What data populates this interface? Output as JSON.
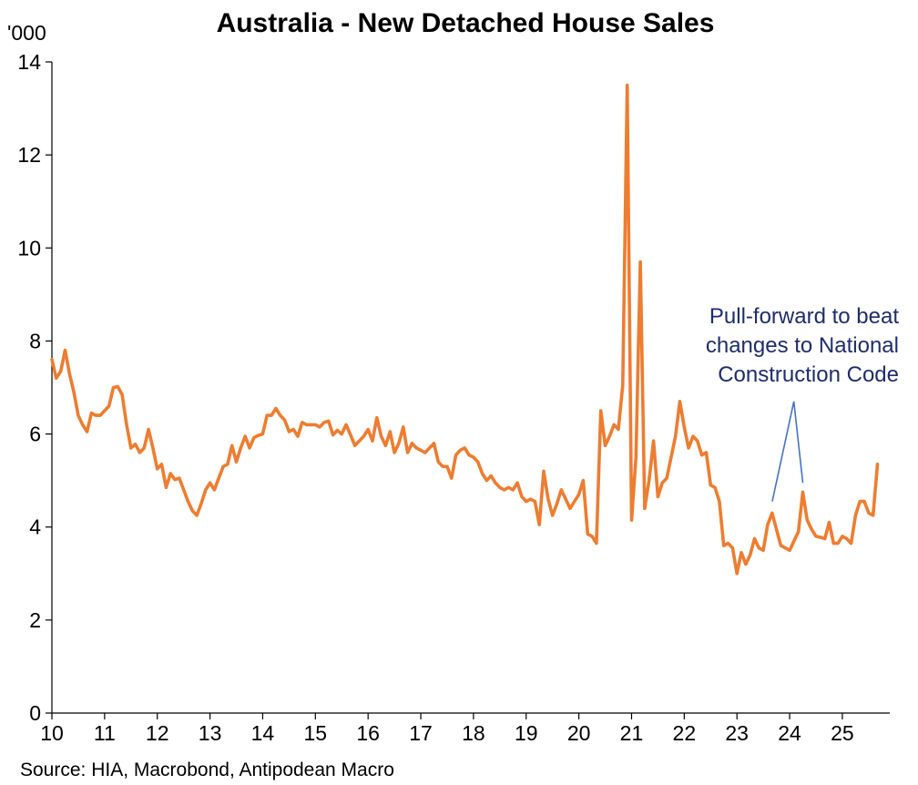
{
  "chart_data": {
    "type": "line",
    "title": "Australia - New Detached House Sales",
    "ylabel": "'000",
    "xlabel": "",
    "ylim": [
      0,
      14
    ],
    "yticks": [
      0,
      2,
      4,
      6,
      8,
      10,
      12,
      14
    ],
    "xlim": [
      2010.0,
      2025.9
    ],
    "xticks": [
      {
        "x": 2010,
        "label": "10"
      },
      {
        "x": 2011,
        "label": "11"
      },
      {
        "x": 2012,
        "label": "12"
      },
      {
        "x": 2013,
        "label": "13"
      },
      {
        "x": 2014,
        "label": "14"
      },
      {
        "x": 2015,
        "label": "15"
      },
      {
        "x": 2016,
        "label": "16"
      },
      {
        "x": 2017,
        "label": "17"
      },
      {
        "x": 2018,
        "label": "18"
      },
      {
        "x": 2019,
        "label": "19"
      },
      {
        "x": 2020,
        "label": "20"
      },
      {
        "x": 2021,
        "label": "21"
      },
      {
        "x": 2022,
        "label": "22"
      },
      {
        "x": 2023,
        "label": "23"
      },
      {
        "x": 2024,
        "label": "24"
      },
      {
        "x": 2025,
        "label": "25"
      }
    ],
    "series": [
      {
        "name": "New Detached House Sales",
        "color": "#ed7d31",
        "x": [
          2010.0,
          2010.083,
          2010.167,
          2010.25,
          2010.333,
          2010.417,
          2010.5,
          2010.583,
          2010.667,
          2010.75,
          2010.833,
          2010.917,
          2011.0,
          2011.083,
          2011.167,
          2011.25,
          2011.333,
          2011.417,
          2011.5,
          2011.583,
          2011.667,
          2011.75,
          2011.833,
          2011.917,
          2012.0,
          2012.083,
          2012.167,
          2012.25,
          2012.333,
          2012.417,
          2012.5,
          2012.583,
          2012.667,
          2012.75,
          2012.833,
          2012.917,
          2013.0,
          2013.083,
          2013.167,
          2013.25,
          2013.333,
          2013.417,
          2013.5,
          2013.583,
          2013.667,
          2013.75,
          2013.833,
          2013.917,
          2014.0,
          2014.083,
          2014.167,
          2014.25,
          2014.333,
          2014.417,
          2014.5,
          2014.583,
          2014.667,
          2014.75,
          2014.833,
          2014.917,
          2015.0,
          2015.083,
          2015.167,
          2015.25,
          2015.333,
          2015.417,
          2015.5,
          2015.583,
          2015.667,
          2015.75,
          2015.833,
          2015.917,
          2016.0,
          2016.083,
          2016.167,
          2016.25,
          2016.333,
          2016.417,
          2016.5,
          2016.583,
          2016.667,
          2016.75,
          2016.833,
          2016.917,
          2017.0,
          2017.083,
          2017.167,
          2017.25,
          2017.333,
          2017.417,
          2017.5,
          2017.583,
          2017.667,
          2017.75,
          2017.833,
          2017.917,
          2018.0,
          2018.083,
          2018.167,
          2018.25,
          2018.333,
          2018.417,
          2018.5,
          2018.583,
          2018.667,
          2018.75,
          2018.833,
          2018.917,
          2019.0,
          2019.083,
          2019.167,
          2019.25,
          2019.333,
          2019.417,
          2019.5,
          2019.583,
          2019.667,
          2019.75,
          2019.833,
          2019.917,
          2020.0,
          2020.083,
          2020.167,
          2020.25,
          2020.333,
          2020.417,
          2020.5,
          2020.583,
          2020.667,
          2020.75,
          2020.833,
          2020.917,
          2021.0,
          2021.083,
          2021.167,
          2021.25,
          2021.333,
          2021.417,
          2021.5,
          2021.583,
          2021.667,
          2021.75,
          2021.833,
          2021.917,
          2022.0,
          2022.083,
          2022.167,
          2022.25,
          2022.333,
          2022.417,
          2022.5,
          2022.583,
          2022.667,
          2022.75,
          2022.833,
          2022.917,
          2023.0,
          2023.083,
          2023.167,
          2023.25,
          2023.333,
          2023.417,
          2023.5,
          2023.583,
          2023.667,
          2023.75,
          2023.833,
          2023.917,
          2024.0,
          2024.083,
          2024.167,
          2024.25,
          2024.333,
          2024.417,
          2024.5,
          2024.583,
          2024.667,
          2024.75,
          2024.833,
          2024.917,
          2025.0,
          2025.083,
          2025.167,
          2025.25,
          2025.333,
          2025.417,
          2025.5,
          2025.583,
          2025.667
        ],
        "values": [
          7.6,
          7.2,
          7.35,
          7.8,
          7.3,
          6.9,
          6.4,
          6.2,
          6.05,
          6.45,
          6.4,
          6.4,
          6.5,
          6.6,
          7.0,
          7.02,
          6.85,
          6.2,
          5.7,
          5.78,
          5.6,
          5.7,
          6.1,
          5.7,
          5.25,
          5.35,
          4.85,
          5.15,
          5.02,
          5.05,
          4.8,
          4.55,
          4.35,
          4.25,
          4.5,
          4.8,
          4.95,
          4.8,
          5.05,
          5.3,
          5.35,
          5.75,
          5.4,
          5.7,
          5.95,
          5.7,
          5.92,
          5.97,
          6.0,
          6.4,
          6.4,
          6.55,
          6.4,
          6.3,
          6.05,
          6.1,
          5.95,
          6.25,
          6.2,
          6.2,
          6.2,
          6.15,
          6.25,
          6.28,
          5.98,
          6.08,
          6.0,
          6.2,
          5.98,
          5.75,
          5.85,
          5.95,
          6.1,
          5.85,
          6.35,
          5.95,
          5.75,
          6.05,
          5.6,
          5.8,
          6.15,
          5.6,
          5.8,
          5.7,
          5.65,
          5.6,
          5.7,
          5.8,
          5.4,
          5.3,
          5.3,
          5.05,
          5.55,
          5.65,
          5.7,
          5.55,
          5.5,
          5.4,
          5.15,
          5.0,
          5.1,
          4.95,
          4.85,
          4.8,
          4.85,
          4.8,
          4.95,
          4.65,
          4.55,
          4.6,
          4.55,
          4.05,
          5.2,
          4.6,
          4.25,
          4.5,
          4.8,
          4.6,
          4.4,
          4.55,
          4.7,
          5.0,
          3.85,
          3.8,
          3.65,
          6.5,
          5.75,
          5.95,
          6.2,
          6.1,
          7.05,
          13.5,
          4.15,
          5.5,
          9.7,
          4.4,
          5.0,
          5.85,
          4.65,
          4.95,
          5.05,
          5.5,
          5.95,
          6.7,
          6.15,
          5.7,
          5.95,
          5.85,
          5.55,
          5.6,
          4.9,
          4.85,
          4.55,
          3.6,
          3.65,
          3.55,
          3.0,
          3.45,
          3.2,
          3.4,
          3.75,
          3.55,
          3.5,
          4.05,
          4.3,
          3.95,
          3.6,
          3.55,
          3.5,
          3.7,
          3.9,
          4.75,
          4.15,
          3.95,
          3.8,
          3.78,
          3.75,
          4.1,
          3.65,
          3.65,
          3.8,
          3.75,
          3.65,
          4.25,
          4.55,
          4.55,
          4.3,
          4.25,
          5.35
        ]
      }
    ],
    "annotations": [
      {
        "lines": [
          "Pull-forward to beat",
          "changes to National",
          "Construction Code"
        ],
        "apex": {
          "x": 2024.08,
          "y": 6.7
        },
        "targets": [
          {
            "x": 2023.67,
            "y": 4.55
          },
          {
            "x": 2024.25,
            "y": 4.95
          }
        ],
        "color": "#1f2d6b",
        "line_color": "#4472c4"
      }
    ],
    "source": "Source: HIA, Macrobond, Antipodean Macro"
  }
}
